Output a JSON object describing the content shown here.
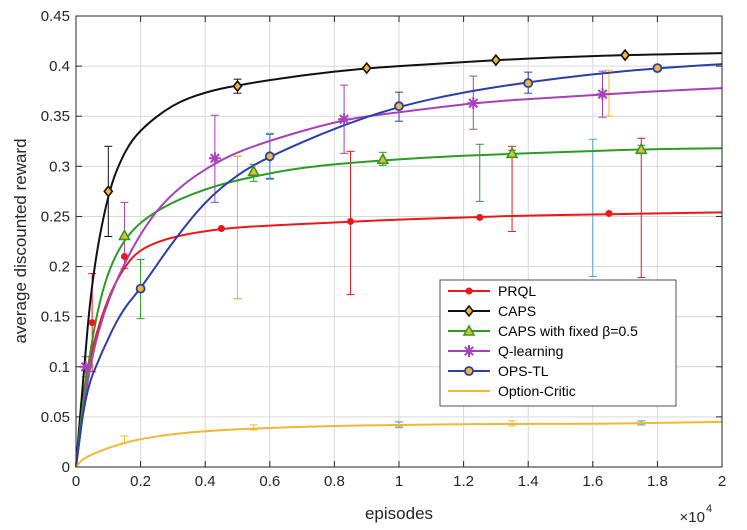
{
  "chart_data": {
    "type": "line",
    "xlabel": "episodes",
    "ylabel": "average discounted reward",
    "x_exponent_label": "×10",
    "x_exponent": "4",
    "xlim": [
      0,
      2
    ],
    "ylim": [
      0,
      0.45
    ],
    "x_ticks": [
      "0",
      "0.2",
      "0.4",
      "0.6",
      "0.8",
      "1",
      "1.2",
      "1.4",
      "1.6",
      "1.8",
      "2"
    ],
    "y_ticks": [
      "0",
      "0.05",
      "0.1",
      "0.15",
      "0.2",
      "0.25",
      "0.3",
      "0.35",
      "0.4",
      "0.45"
    ],
    "grid": true,
    "legend_position": "lower-right",
    "series": [
      {
        "name": "PRQL",
        "color": "#e8191b",
        "marker": "dot",
        "curve": [
          [
            0,
            0
          ],
          [
            0.02,
            0.07
          ],
          [
            0.05,
            0.12
          ],
          [
            0.1,
            0.17
          ],
          [
            0.15,
            0.2
          ],
          [
            0.2,
            0.218
          ],
          [
            0.3,
            0.23
          ],
          [
            0.45,
            0.238
          ],
          [
            0.6,
            0.241
          ],
          [
            0.8,
            0.244
          ],
          [
            1.0,
            0.247
          ],
          [
            1.2,
            0.249
          ],
          [
            1.4,
            0.251
          ],
          [
            1.6,
            0.252
          ],
          [
            1.8,
            0.253
          ],
          [
            2.0,
            0.254
          ]
        ],
        "markers": [
          [
            0.05,
            0.144
          ],
          [
            0.15,
            0.21
          ],
          [
            0.45,
            0.238
          ],
          [
            0.85,
            0.245
          ],
          [
            1.25,
            0.249
          ],
          [
            1.65,
            0.253
          ]
        ],
        "error_bars": [
          [
            0.05,
            0.095,
            0.193
          ],
          [
            0.5,
            0.168,
            0.31
          ],
          [
            0.85,
            0.172,
            0.315
          ],
          [
            1.35,
            0.235,
            0.32
          ],
          [
            1.75,
            0.189,
            0.328
          ]
        ]
      },
      {
        "name": "CAPS",
        "color": "#111111",
        "marker": "diamond",
        "curve": [
          [
            0,
            0
          ],
          [
            0.02,
            0.08
          ],
          [
            0.05,
            0.19
          ],
          [
            0.1,
            0.275
          ],
          [
            0.15,
            0.315
          ],
          [
            0.2,
            0.337
          ],
          [
            0.3,
            0.362
          ],
          [
            0.4,
            0.374
          ],
          [
            0.5,
            0.381
          ],
          [
            0.7,
            0.391
          ],
          [
            0.9,
            0.398
          ],
          [
            1.1,
            0.402
          ],
          [
            1.3,
            0.406
          ],
          [
            1.5,
            0.409
          ],
          [
            1.7,
            0.411
          ],
          [
            2.0,
            0.413
          ]
        ],
        "markers": [
          [
            0.1,
            0.275
          ],
          [
            0.5,
            0.38
          ],
          [
            0.9,
            0.398
          ],
          [
            1.3,
            0.406
          ],
          [
            1.7,
            0.411
          ]
        ],
        "error_bars": [
          [
            0.1,
            0.23,
            0.32
          ],
          [
            0.5,
            0.373,
            0.387
          ]
        ]
      },
      {
        "name": "CAPS with fixed β=0.5",
        "color": "#2c9c27",
        "marker": "triangle",
        "curve": [
          [
            0,
            0
          ],
          [
            0.03,
            0.09
          ],
          [
            0.08,
            0.18
          ],
          [
            0.15,
            0.23
          ],
          [
            0.25,
            0.257
          ],
          [
            0.4,
            0.278
          ],
          [
            0.55,
            0.29
          ],
          [
            0.7,
            0.299
          ],
          [
            0.9,
            0.305
          ],
          [
            1.1,
            0.309
          ],
          [
            1.3,
            0.312
          ],
          [
            1.5,
            0.314
          ],
          [
            1.75,
            0.317
          ],
          [
            2.0,
            0.318
          ]
        ],
        "markers": [
          [
            0.15,
            0.231
          ],
          [
            0.55,
            0.295
          ],
          [
            0.95,
            0.307
          ],
          [
            1.35,
            0.313
          ],
          [
            1.75,
            0.317
          ]
        ],
        "error_bars": [
          [
            0.2,
            0.148,
            0.207
          ],
          [
            0.55,
            0.285,
            0.302
          ],
          [
            0.95,
            0.301,
            0.314
          ],
          [
            1.25,
            0.265,
            0.322
          ],
          [
            1.35,
            0.311,
            0.316
          ],
          [
            1.75,
            0.313,
            0.321
          ]
        ]
      },
      {
        "name": "Q-learning",
        "color": "#a641b8",
        "marker": "asterisk",
        "curve": [
          [
            0,
            0
          ],
          [
            0.04,
            0.1
          ],
          [
            0.1,
            0.17
          ],
          [
            0.2,
            0.235
          ],
          [
            0.3,
            0.275
          ],
          [
            0.45,
            0.308
          ],
          [
            0.6,
            0.326
          ],
          [
            0.83,
            0.347
          ],
          [
            1.0,
            0.354
          ],
          [
            1.25,
            0.364
          ],
          [
            1.5,
            0.369
          ],
          [
            1.65,
            0.372
          ],
          [
            1.8,
            0.375
          ],
          [
            2.0,
            0.378
          ]
        ],
        "markers": [
          [
            0.03,
            0.1
          ],
          [
            0.43,
            0.308
          ],
          [
            0.83,
            0.347
          ],
          [
            1.23,
            0.363
          ],
          [
            1.63,
            0.372
          ]
        ],
        "error_bars": [
          [
            0.03,
            0.09,
            0.11
          ],
          [
            0.15,
            0.198,
            0.264
          ],
          [
            0.43,
            0.264,
            0.351
          ],
          [
            0.83,
            0.313,
            0.381
          ],
          [
            1.23,
            0.337,
            0.39
          ],
          [
            1.63,
            0.349,
            0.395
          ]
        ]
      },
      {
        "name": "OPS-TL",
        "color": "#2b3fa6",
        "marker": "circle",
        "curve": [
          [
            0,
            0
          ],
          [
            0.03,
            0.075
          ],
          [
            0.08,
            0.115
          ],
          [
            0.14,
            0.155
          ],
          [
            0.2,
            0.178
          ],
          [
            0.3,
            0.225
          ],
          [
            0.4,
            0.265
          ],
          [
            0.5,
            0.292
          ],
          [
            0.6,
            0.31
          ],
          [
            0.8,
            0.338
          ],
          [
            1.0,
            0.36
          ],
          [
            1.2,
            0.374
          ],
          [
            1.4,
            0.384
          ],
          [
            1.6,
            0.392
          ],
          [
            1.8,
            0.398
          ],
          [
            2.0,
            0.402
          ]
        ],
        "markers": [
          [
            0.2,
            0.178
          ],
          [
            0.6,
            0.31
          ],
          [
            1.0,
            0.36
          ],
          [
            1.4,
            0.383
          ],
          [
            1.8,
            0.398
          ]
        ],
        "error_bars": [
          [
            0.6,
            0.288,
            0.332
          ],
          [
            1.0,
            0.345,
            0.374
          ],
          [
            1.4,
            0.373,
            0.394
          ]
        ]
      },
      {
        "name": "Option-Critic",
        "color": "#f1b735",
        "marker": "none",
        "curve": [
          [
            0,
            0
          ],
          [
            0.02,
            0.008
          ],
          [
            0.06,
            0.014
          ],
          [
            0.1,
            0.019
          ],
          [
            0.15,
            0.024
          ],
          [
            0.2,
            0.028
          ],
          [
            0.3,
            0.033
          ],
          [
            0.45,
            0.037
          ],
          [
            0.6,
            0.039
          ],
          [
            0.8,
            0.041
          ],
          [
            1.0,
            0.042
          ],
          [
            1.3,
            0.043
          ],
          [
            1.6,
            0.043
          ],
          [
            1.8,
            0.044
          ],
          [
            2.0,
            0.045
          ]
        ],
        "markers": [],
        "error_bars": [
          [
            0.15,
            0.024,
            0.031
          ],
          [
            0.55,
            0.037,
            0.042
          ],
          [
            1.0,
            0.039,
            0.045
          ],
          [
            1.35,
            0.041,
            0.046
          ],
          [
            1.75,
            0.042,
            0.046
          ]
        ]
      }
    ],
    "extra_error_bars": [
      {
        "color": "#4aa3d8",
        "bars": [
          [
            1.6,
            0.19,
            0.327
          ],
          [
            1.75,
            0.042,
            0.046
          ],
          [
            0.6,
            0.287,
            0.333
          ],
          [
            1.0,
            0.04,
            0.045
          ]
        ]
      },
      {
        "color": "#f1b735",
        "bars": [
          [
            0.5,
            0.168,
            0.31
          ],
          [
            1.65,
            0.35,
            0.396
          ]
        ]
      }
    ]
  }
}
